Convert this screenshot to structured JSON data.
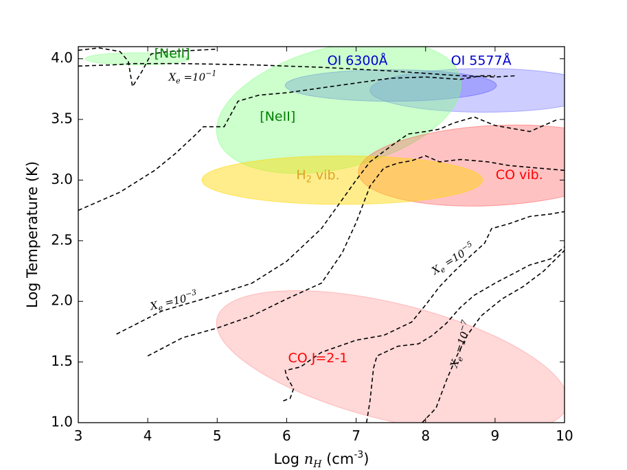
{
  "chart_data": {
    "type": "scatter",
    "title": "",
    "xlabel": "Log n_H (cm^-3)",
    "ylabel": "Log Temperature (K)",
    "xlabel_parts": {
      "prefix": "Log ",
      "var": "n",
      "sub": "H",
      "unit_pre": "(cm",
      "unit_exp": "-3",
      "unit_post": ")"
    },
    "xlim": [
      3,
      10
    ],
    "ylim": [
      1.0,
      4.1
    ],
    "xticks": [
      "3",
      "4",
      "5",
      "6",
      "7",
      "8",
      "9",
      "10"
    ],
    "yticks": [
      "1.0",
      "1.5",
      "2.0",
      "2.5",
      "3.0",
      "3.5",
      "4.0"
    ],
    "grid": false,
    "regions": [
      {
        "name": "[NeII]",
        "label": "[NeII]",
        "cx": 3.85,
        "cy": 4.0,
        "rx": 0.75,
        "ry": 0.05,
        "fill": "#7fff7f",
        "opacity": 0.35,
        "label_color": "#008000"
      },
      {
        "name": "OI 6300",
        "label": "OI 6300Å",
        "cx": 7.5,
        "cy": 3.78,
        "rx": 1.52,
        "ry": 0.13,
        "fill": "#3a3aff",
        "opacity": 0.3,
        "label_color": "#0000cd"
      },
      {
        "name": "OI 5577",
        "label": "OI 5577Å",
        "cx": 8.85,
        "cy": 3.74,
        "rx": 1.65,
        "ry": 0.18,
        "fill": "#5a5aff",
        "opacity": 0.3,
        "label_color": "#0000cd"
      },
      {
        "name": "[NeII] 2",
        "label": "[NeII]",
        "cx": 6.75,
        "cy": 3.6,
        "rx": 1.8,
        "ry": 0.5,
        "rotation": 14,
        "fill": "#7fff7f",
        "opacity": 0.4,
        "label_color": "#008000"
      },
      {
        "name": "CO vib.",
        "label": "CO vib.",
        "cx": 8.98,
        "cy": 3.12,
        "rx": 1.95,
        "ry": 0.33,
        "rotation": 3,
        "fill": "#ff5050",
        "opacity": 0.35,
        "label_color": "#ff0000"
      },
      {
        "name": "H2 vib.",
        "label": "H2 vib.",
        "label_base": "H",
        "label_sub": "2",
        "label_suffix": " vib.",
        "cx": 6.8,
        "cy": 3.0,
        "rx": 2.02,
        "ry": 0.2,
        "fill": "#ffd700",
        "opacity": 0.45,
        "label_color": "#daa520"
      },
      {
        "name": "CO J=2-1",
        "label": "CO J=2-1",
        "cx": 7.52,
        "cy": 1.5,
        "rx": 2.6,
        "ry": 0.48,
        "rotation": -14,
        "fill": "#ff7f7f",
        "opacity": 0.3,
        "label_color": "#ff0000"
      }
    ],
    "contours": [
      {
        "name": "Xe=10^-1",
        "points": [
          [
            3.0,
            3.94
          ],
          [
            3.5,
            3.95
          ],
          [
            3.8,
            3.96
          ],
          [
            4.5,
            3.96
          ],
          [
            5.5,
            3.95
          ],
          [
            6.5,
            3.93
          ],
          [
            7.5,
            3.9
          ],
          [
            8.0,
            3.88
          ],
          [
            8.5,
            3.86
          ],
          [
            9.0,
            3.85
          ],
          [
            9.3,
            3.86
          ]
        ]
      },
      {
        "name": "Xe=10^-1 upper",
        "points": [
          [
            3.0,
            4.07
          ],
          [
            3.3,
            4.09
          ],
          [
            3.6,
            4.06
          ],
          [
            3.72,
            3.98
          ],
          [
            3.78,
            3.77
          ],
          [
            3.92,
            3.9
          ],
          [
            4.05,
            4.04
          ],
          [
            4.3,
            4.06
          ],
          [
            4.7,
            4.07
          ],
          [
            5.0,
            4.08
          ]
        ]
      },
      {
        "name": "ionization front",
        "points": [
          [
            3.0,
            2.75
          ],
          [
            3.6,
            2.9
          ],
          [
            4.1,
            3.08
          ],
          [
            4.4,
            3.22
          ],
          [
            4.7,
            3.38
          ],
          [
            4.8,
            3.44
          ],
          [
            5.1,
            3.44
          ],
          [
            5.3,
            3.65
          ],
          [
            5.6,
            3.7
          ],
          [
            6.0,
            3.72
          ],
          [
            6.5,
            3.76
          ],
          [
            7.0,
            3.8
          ],
          [
            7.5,
            3.84
          ],
          [
            8.0,
            3.85
          ],
          [
            8.5,
            3.83
          ],
          [
            8.8,
            3.86
          ],
          [
            9.0,
            3.86
          ]
        ]
      },
      {
        "name": "Xe=10^-3",
        "points": [
          [
            3.55,
            1.73
          ],
          [
            4.2,
            1.92
          ],
          [
            4.8,
            2.02
          ],
          [
            5.5,
            2.15
          ],
          [
            6.0,
            2.33
          ],
          [
            6.5,
            2.6
          ],
          [
            7.0,
            3.0
          ],
          [
            7.2,
            3.15
          ],
          [
            7.5,
            3.28
          ],
          [
            7.75,
            3.38
          ],
          [
            8.0,
            3.4
          ],
          [
            8.2,
            3.42
          ],
          [
            8.4,
            3.47
          ],
          [
            8.7,
            3.52
          ],
          [
            9.0,
            3.45
          ],
          [
            9.5,
            3.4
          ],
          [
            9.9,
            3.5
          ]
        ]
      },
      {
        "name": "middle contour",
        "points": [
          [
            4.0,
            1.55
          ],
          [
            4.5,
            1.7
          ],
          [
            5.0,
            1.78
          ],
          [
            5.5,
            1.88
          ],
          [
            6.0,
            2.02
          ],
          [
            6.5,
            2.15
          ],
          [
            6.8,
            2.4
          ],
          [
            7.0,
            2.65
          ],
          [
            7.2,
            2.95
          ],
          [
            7.4,
            3.1
          ],
          [
            7.6,
            3.14
          ],
          [
            7.8,
            3.16
          ],
          [
            8.0,
            3.2
          ],
          [
            8.2,
            3.15
          ],
          [
            8.5,
            3.17
          ],
          [
            8.9,
            3.15
          ],
          [
            9.2,
            3.12
          ],
          [
            9.6,
            3.1
          ],
          [
            10.0,
            3.08
          ]
        ]
      },
      {
        "name": "Xe=10^-5",
        "points": [
          [
            5.95,
            1.18
          ],
          [
            6.05,
            1.2
          ],
          [
            6.1,
            1.28
          ],
          [
            6.0,
            1.38
          ],
          [
            5.98,
            1.43
          ],
          [
            6.2,
            1.46
          ],
          [
            6.5,
            1.58
          ],
          [
            7.0,
            1.68
          ],
          [
            7.4,
            1.72
          ],
          [
            7.8,
            1.83
          ],
          [
            8.0,
            1.97
          ],
          [
            8.2,
            2.12
          ],
          [
            8.4,
            2.24
          ],
          [
            8.6,
            2.35
          ],
          [
            8.85,
            2.48
          ],
          [
            8.95,
            2.6
          ],
          [
            9.2,
            2.64
          ],
          [
            9.5,
            2.7
          ],
          [
            9.8,
            2.72
          ],
          [
            10.0,
            2.74
          ]
        ]
      },
      {
        "name": "Xe=10^-7",
        "points": [
          [
            7.15,
            1.0
          ],
          [
            7.2,
            1.18
          ],
          [
            7.25,
            1.45
          ],
          [
            7.3,
            1.55
          ],
          [
            7.6,
            1.63
          ],
          [
            7.9,
            1.65
          ],
          [
            8.1,
            1.72
          ],
          [
            8.3,
            1.82
          ],
          [
            8.5,
            1.95
          ],
          [
            8.7,
            2.05
          ],
          [
            9.0,
            2.15
          ],
          [
            9.5,
            2.3
          ],
          [
            9.8,
            2.35
          ],
          [
            10.0,
            2.45
          ]
        ]
      },
      {
        "name": "lower right contour",
        "points": [
          [
            7.95,
            1.0
          ],
          [
            8.15,
            1.12
          ],
          [
            8.3,
            1.35
          ],
          [
            8.45,
            1.55
          ],
          [
            8.6,
            1.72
          ],
          [
            8.8,
            1.88
          ],
          [
            9.1,
            2.02
          ],
          [
            9.4,
            2.12
          ],
          [
            9.7,
            2.25
          ],
          [
            10.0,
            2.42
          ]
        ]
      }
    ],
    "contour_labels": [
      {
        "label": "Xe=10^-1",
        "base": "X",
        "sub": "e",
        "eq": " =10",
        "exp": "−1",
        "x": 4.3,
        "y": 3.82,
        "angle": 0
      },
      {
        "label": "Xe=10^-3",
        "base": "X",
        "sub": "e",
        "eq": " =10",
        "exp": "−3",
        "x": 4.05,
        "y": 1.93,
        "angle": -13
      },
      {
        "label": "Xe=10^-5",
        "base": "X",
        "sub": "e",
        "eq": " =10",
        "exp": "−5",
        "x": 8.13,
        "y": 2.22,
        "angle": -32
      },
      {
        "label": "Xe=10^-7",
        "base": "X",
        "sub": "e",
        "eq": " =10",
        "exp": "−7",
        "x": 8.45,
        "y": 1.45,
        "angle": -72
      }
    ]
  }
}
